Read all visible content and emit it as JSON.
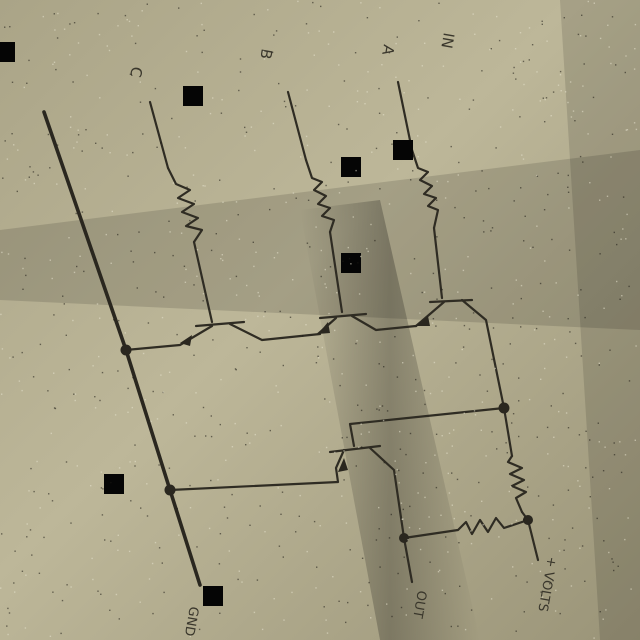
{
  "labels": {
    "in": "IN",
    "a": "A",
    "b": "B",
    "c": "C",
    "gnd": "GND",
    "out": "OUT",
    "volts": "+ VOLTS"
  },
  "colors": {
    "paper_light": "#b9b394",
    "paper_mid": "#9d977c",
    "paper_shadow": "#6f6b58",
    "ink": "#2f2c23"
  }
}
